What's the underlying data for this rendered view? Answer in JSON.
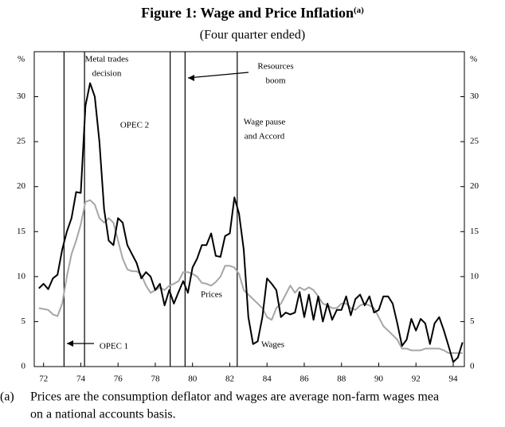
{
  "chart_data": {
    "type": "line",
    "title": "Figure 1: Wage and Price Inflation",
    "title_note": "(a)",
    "subtitle": "(Four quarter ended)",
    "y_unit": "%",
    "x": [
      71.75,
      72,
      72.25,
      72.5,
      72.75,
      73,
      73.25,
      73.5,
      73.75,
      74,
      74.25,
      74.5,
      74.75,
      75,
      75.25,
      75.5,
      75.75,
      76,
      76.25,
      76.5,
      76.75,
      77,
      77.25,
      77.5,
      77.75,
      78,
      78.25,
      78.5,
      78.75,
      79,
      79.25,
      79.5,
      79.75,
      80,
      80.25,
      80.5,
      80.75,
      81,
      81.25,
      81.5,
      81.75,
      82,
      82.25,
      82.5,
      82.75,
      83,
      83.25,
      83.5,
      83.75,
      84,
      84.25,
      84.5,
      84.75,
      85,
      85.25,
      85.5,
      85.75,
      86,
      86.25,
      86.5,
      86.75,
      87,
      87.25,
      87.5,
      87.75,
      88,
      88.25,
      88.5,
      88.75,
      89,
      89.25,
      89.5,
      89.75,
      90,
      90.25,
      90.5,
      90.75,
      91,
      91.25,
      91.5,
      91.75,
      92,
      92.25,
      92.5,
      92.75,
      93,
      93.25,
      93.5,
      93.75,
      94,
      94.25,
      94.5
    ],
    "series": [
      {
        "name": "Wages",
        "color": "#000000",
        "values": [
          8.7,
          9.2,
          8.6,
          9.8,
          10.2,
          13,
          15,
          16.5,
          19.4,
          19.3,
          29,
          31.5,
          30,
          25,
          17.5,
          14,
          13.5,
          16.5,
          16,
          13.5,
          12.5,
          11.5,
          9.8,
          10.5,
          10,
          8.5,
          9.2,
          6.8,
          8.5,
          7,
          8.3,
          9.5,
          8.2,
          11,
          12,
          13.5,
          13.5,
          14.8,
          12.3,
          12.2,
          14.5,
          14.8,
          18.8,
          17,
          13,
          5.5,
          2.5,
          2.8,
          5.5,
          9.8,
          9.2,
          8.5,
          5.5,
          6,
          5.8,
          6,
          8.3,
          5.5,
          8,
          5.2,
          7.8,
          5,
          7,
          5.2,
          6.3,
          6.3,
          7.8,
          5.7,
          7.5,
          8,
          6.8,
          7.8,
          6,
          6.3,
          7.8,
          7.8,
          7,
          4.8,
          2.3,
          3,
          5.3,
          4,
          5.3,
          4.8,
          2.5,
          4.8,
          5.5,
          4,
          2.3,
          0.5,
          1,
          2.7
        ]
      },
      {
        "name": "Prices",
        "color": "#a6a6a6",
        "values": [
          6.5,
          6.4,
          6.3,
          5.8,
          5.6,
          7,
          10,
          12.5,
          14,
          15.8,
          18.3,
          18.5,
          18,
          16.5,
          16,
          16.5,
          16,
          14,
          12,
          10.8,
          10.6,
          10.6,
          10.2,
          9,
          8.2,
          8.5,
          8.8,
          8.5,
          9,
          9.2,
          9.5,
          10.5,
          10.5,
          10.3,
          10,
          9.3,
          9.2,
          9,
          9.4,
          10,
          11.2,
          11.2,
          11,
          10.3,
          8.5,
          8,
          7.5,
          7,
          6.5,
          5.5,
          5.2,
          6.5,
          7,
          8,
          9,
          8.2,
          8.8,
          8.5,
          8.8,
          8.5,
          7.8,
          7,
          6.8,
          6.5,
          6.5,
          7,
          7,
          6.5,
          6.3,
          6.8,
          7,
          6.8,
          6.5,
          5.5,
          4.5,
          4,
          3.5,
          3,
          2,
          2,
          1.8,
          1.8,
          1.8,
          2,
          2,
          2,
          2,
          1.8,
          1.5,
          1.5,
          1.5,
          1.5
        ]
      }
    ],
    "xlim": [
      71.5,
      94.6
    ],
    "xticks": [
      72,
      74,
      76,
      78,
      80,
      82,
      84,
      86,
      88,
      90,
      92,
      94
    ],
    "ylim": [
      0,
      35
    ],
    "yticks": [
      0,
      5,
      10,
      15,
      20,
      25,
      30
    ],
    "event_lines": [
      73.1,
      74.2,
      78.8,
      79.6,
      82.4
    ],
    "annotations": [
      {
        "lines": [
          "Metal trades",
          "decision"
        ]
      },
      {
        "lines": [
          "OPEC 2"
        ]
      },
      {
        "lines": [
          "Resources",
          "boom"
        ]
      },
      {
        "lines": [
          "Wage pause",
          "and Accord"
        ]
      },
      {
        "lines": [
          "OPEC 1"
        ]
      }
    ],
    "footnote": {
      "marker": "(a)",
      "lines": [
        "Prices are the consumption deflator and wages are average non-farm wages mea",
        "on a national accounts basis."
      ]
    }
  }
}
